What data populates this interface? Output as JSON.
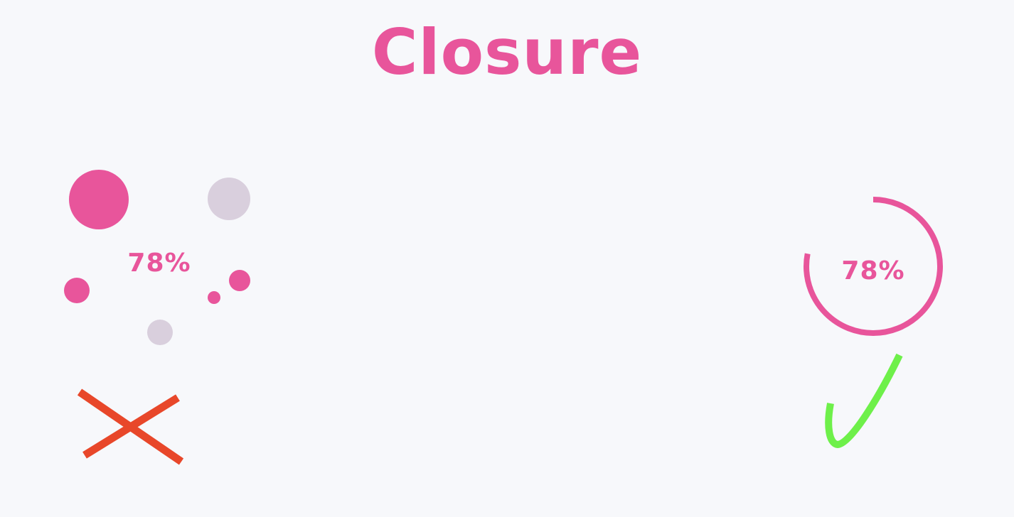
{
  "title": "Closure",
  "colors": {
    "background": "#f7f8fb",
    "accent_pink": "#e8559b",
    "muted_circle": "#d9cfdd",
    "cross_red": "#e8472a",
    "check_green": "#6ef04a"
  },
  "bad_example": {
    "value_label": "78%",
    "mark_icon": "cross-icon"
  },
  "good_example": {
    "value_label": "78%",
    "progress_fraction": 0.78,
    "mark_icon": "check-icon"
  }
}
